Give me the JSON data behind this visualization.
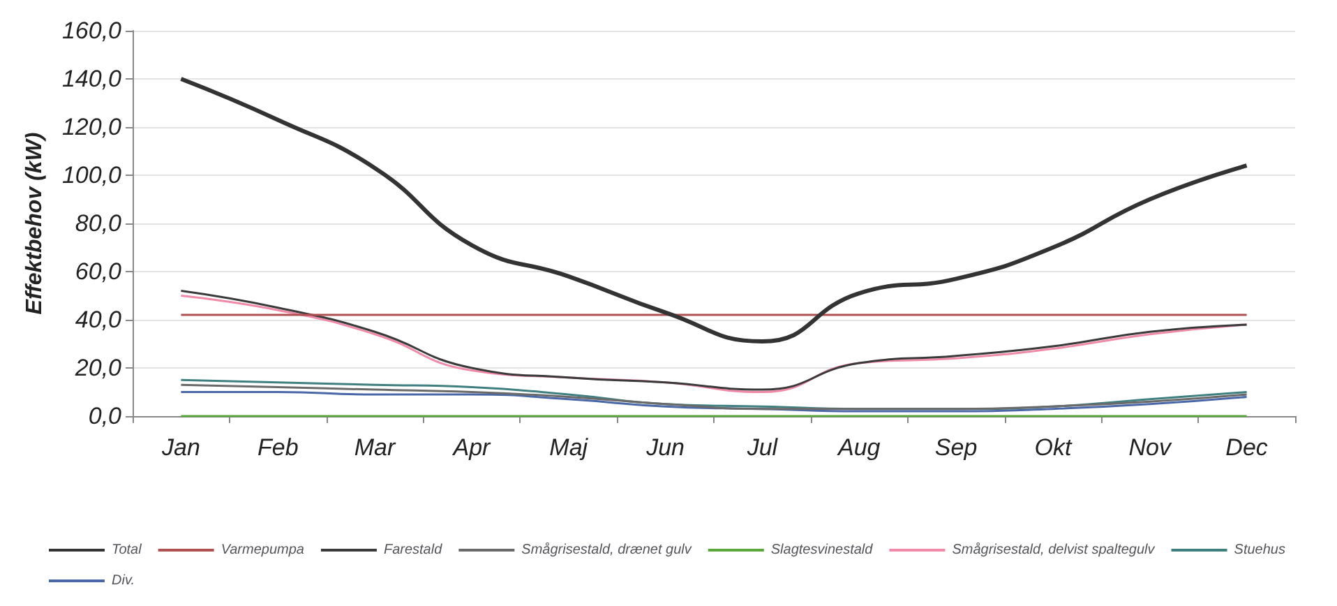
{
  "chart_data": {
    "type": "line",
    "ylabel": "Effektbehov (kW)",
    "categories": [
      "Jan",
      "Feb",
      "Mar",
      "Apr",
      "Maj",
      "Jun",
      "Jul",
      "Aug",
      "Sep",
      "Okt",
      "Nov",
      "Dec"
    ],
    "series": [
      {
        "name": "Total",
        "color": "#333333",
        "values": [
          140,
          123,
          103,
          71,
          58,
          43,
          31,
          51,
          57,
          70,
          90,
          104
        ]
      },
      {
        "name": "Varmepumpa",
        "color": "#b05050",
        "values": [
          42,
          42,
          42,
          42,
          42,
          42,
          42,
          42,
          42,
          42,
          42,
          42
        ]
      },
      {
        "name": "Farestald",
        "color": "#3a3a3a",
        "values": [
          52,
          45,
          35,
          20,
          16,
          14,
          11,
          22,
          25,
          29,
          35,
          38
        ]
      },
      {
        "name": "Smågrisestald, drænet gulv",
        "color": "#6a6a6a",
        "values": [
          13,
          12,
          11,
          10,
          8,
          5,
          3,
          3,
          3,
          4,
          6,
          9
        ]
      },
      {
        "name": "Slagtesvinestald",
        "color": "#5aa83c",
        "values": [
          0,
          0,
          0,
          0,
          0,
          0,
          0,
          0,
          0,
          0,
          0,
          0
        ]
      },
      {
        "name": "Smågrisestald, delvist spaltegulv",
        "color": "#f08aa8",
        "values": [
          50,
          44,
          34,
          19,
          16,
          14,
          10,
          22,
          24,
          28,
          34,
          38
        ]
      },
      {
        "name": "Stuehus",
        "color": "#3f7f7f",
        "values": [
          15,
          14,
          13,
          12,
          9,
          5,
          4,
          3,
          3,
          4,
          7,
          10
        ]
      },
      {
        "name": "Div.",
        "color": "#4a68a8",
        "values": [
          10,
          10,
          9,
          9,
          7,
          4,
          3,
          2,
          2,
          3,
          5,
          8
        ]
      }
    ],
    "ylim": [
      0,
      160
    ],
    "yticks": [
      {
        "value": 0,
        "label": "0,0"
      },
      {
        "value": 20,
        "label": "20,0"
      },
      {
        "value": 40,
        "label": "40,0"
      },
      {
        "value": 60,
        "label": "60,0"
      },
      {
        "value": 80,
        "label": "80,0"
      },
      {
        "value": 100,
        "label": "100,0"
      },
      {
        "value": 120,
        "label": "120,0"
      },
      {
        "value": 140,
        "label": "140,0"
      },
      {
        "value": 160,
        "label": "160,0"
      }
    ],
    "grid": "y",
    "legend": "bottom",
    "marker": "none",
    "line_style": "solid"
  }
}
